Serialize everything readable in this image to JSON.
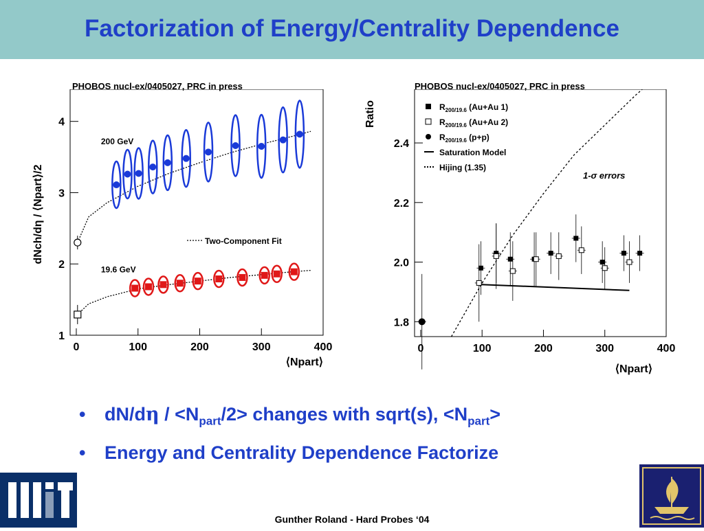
{
  "slide": {
    "title": "Factorization of Energy/Centrality Dependence",
    "footer": "Gunther Roland - Hard Probes ‘04",
    "accent_color": "#1f3fc8",
    "header_color": "#93c9c9",
    "bullets": [
      {
        "parts": [
          {
            "text": "dN/d"
          },
          {
            "text": "η",
            "style": "symbol"
          },
          {
            "text": " / <N"
          },
          {
            "text": "part",
            "style": "sub"
          },
          {
            "text": "/2> changes with sqrt(s), <N"
          },
          {
            "text": "part",
            "style": "sub"
          },
          {
            "text": ">"
          }
        ]
      },
      {
        "parts": [
          {
            "text": "Energy and Centrality Dependence Factorize"
          }
        ]
      }
    ],
    "logos": [
      "mit-logo",
      "ship-seal-logo"
    ],
    "mit_logo_text": "MIT"
  },
  "chart_data": [
    {
      "type": "scatter",
      "source": "PHOBOS nucl-ex/0405027, PRC in press",
      "ylabel": "dNch/dη / ⟨Npart⟩/2",
      "xlabel": "⟨Npart⟩",
      "xlim": [
        -10,
        400
      ],
      "ylim": [
        1,
        4.45
      ],
      "xticks": [
        0,
        100,
        200,
        300,
        400
      ],
      "yticks": [
        1,
        2,
        3,
        4
      ],
      "legend": [
        {
          "label": "Two-Component Fit",
          "style": "dotted"
        }
      ],
      "annotations": [
        "200 GeV",
        "19.6 GeV"
      ],
      "series": [
        {
          "name": "200 GeV",
          "marker": "filled-circle",
          "color": "#1a3ad8",
          "x": [
            65,
            83,
            101,
            124,
            148,
            178,
            214,
            258,
            300,
            335,
            362
          ],
          "y": [
            3.11,
            3.26,
            3.27,
            3.36,
            3.42,
            3.48,
            3.57,
            3.66,
            3.65,
            3.74,
            3.82
          ]
        },
        {
          "name": "200 GeV p+p",
          "marker": "open-circle",
          "color": "#000000",
          "x": [
            2
          ],
          "y": [
            2.3
          ]
        },
        {
          "name": "19.6 GeV",
          "marker": "filled-square",
          "color": "#e01818",
          "x": [
            95,
            117,
            141,
            168,
            197,
            231,
            269,
            305,
            325,
            353
          ],
          "y": [
            1.66,
            1.68,
            1.71,
            1.73,
            1.76,
            1.79,
            1.81,
            1.84,
            1.86,
            1.89
          ]
        },
        {
          "name": "19.6 GeV p+p",
          "marker": "open-square",
          "color": "#000000",
          "x": [
            2
          ],
          "y": [
            1.29
          ]
        }
      ],
      "fits": [
        {
          "name": "Two-Component Fit",
          "x": [
            2,
            20,
            50,
            100,
            150,
            200,
            250,
            300,
            350,
            380
          ],
          "y": [
            2.3,
            2.66,
            2.86,
            3.09,
            3.27,
            3.42,
            3.56,
            3.68,
            3.79,
            3.86
          ]
        },
        {
          "name": "Two-Component Fit 19.6",
          "x": [
            2,
            20,
            50,
            100,
            150,
            200,
            250,
            300,
            350,
            380
          ],
          "y": [
            1.29,
            1.44,
            1.54,
            1.65,
            1.71,
            1.76,
            1.81,
            1.85,
            1.89,
            1.91
          ]
        }
      ]
    },
    {
      "type": "scatter",
      "source": "PHOBOS nucl-ex/0405027, PRC in press",
      "ylabel": "Ratio",
      "xlabel": "⟨Npart⟩",
      "xlim": [
        -10,
        400
      ],
      "ylim": [
        1.75,
        2.58
      ],
      "xticks": [
        0,
        100,
        200,
        300,
        400
      ],
      "yticks": [
        1.8,
        2.0,
        2.2,
        2.4
      ],
      "legend": [
        {
          "label": "R",
          "sub": "200/19.6",
          "suffix": "(Au+Au 1)",
          "marker": "filled-square"
        },
        {
          "label": "R",
          "sub": "200/19.6",
          "suffix": "(Au+Au 2)",
          "marker": "open-square"
        },
        {
          "label": "R",
          "sub": "200/19.6",
          "suffix": "(p+p)",
          "marker": "filled-circle"
        },
        {
          "label": "Saturation Model",
          "style": "solid"
        },
        {
          "label": "Hijing (1.35)",
          "style": "dotted"
        }
      ],
      "annotations": [
        "1-σ errors"
      ],
      "series": [
        {
          "name": "R 200/19.6 (Au+Au 1)",
          "marker": "filled-square",
          "x": [
            98,
            123,
            146,
            185,
            212,
            253,
            296,
            331,
            357
          ],
          "y": [
            1.98,
            2.03,
            2.01,
            2.01,
            2.03,
            2.08,
            2.0,
            2.03,
            2.03
          ],
          "yerr": [
            0.09,
            0.1,
            0.09,
            0.09,
            0.07,
            0.08,
            0.07,
            0.06,
            0.06
          ]
        },
        {
          "name": "R 200/19.6 (Au+Au 2)",
          "marker": "open-square",
          "x": [
            95,
            123,
            150,
            188,
            225,
            262,
            300,
            340
          ],
          "y": [
            1.93,
            2.02,
            1.97,
            2.01,
            2.02,
            2.04,
            1.98,
            2.0
          ],
          "yerr": [
            0.13,
            0.11,
            0.1,
            0.09,
            0.08,
            0.08,
            0.07,
            0.07
          ]
        },
        {
          "name": "R 200/19.6 (p+p)",
          "marker": "filled-circle",
          "x": [
            2
          ],
          "y": [
            1.8
          ],
          "yerr": [
            0.16
          ]
        }
      ],
      "models": [
        {
          "name": "Saturation Model",
          "x": [
            95,
            340
          ],
          "y": [
            1.925,
            1.905
          ]
        },
        {
          "name": "Hijing (1.35)",
          "x": [
            50,
            100,
            150,
            200,
            250,
            300,
            350,
            400
          ],
          "y": [
            1.75,
            1.93,
            2.09,
            2.23,
            2.36,
            2.46,
            2.56,
            2.65
          ]
        }
      ]
    }
  ]
}
